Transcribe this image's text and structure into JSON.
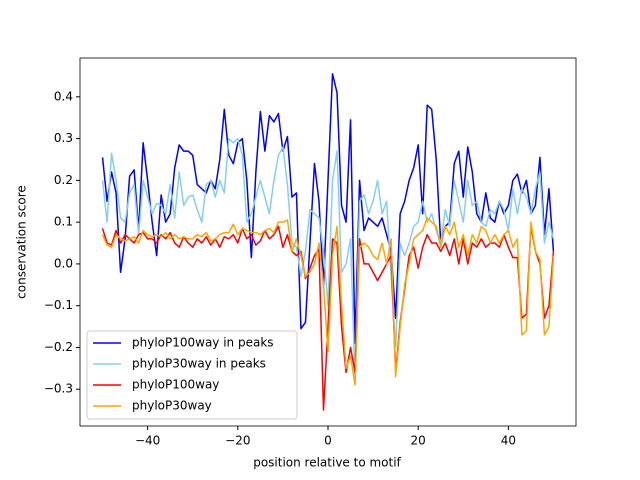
{
  "chart_data": {
    "type": "line",
    "xlabel": "position relative to motif",
    "ylabel": "conservation score",
    "x": [
      -50,
      -49,
      -48,
      -47,
      -46,
      -45,
      -44,
      -43,
      -42,
      -41,
      -40,
      -39,
      -38,
      -37,
      -36,
      -35,
      -34,
      -33,
      -32,
      -31,
      -30,
      -29,
      -28,
      -27,
      -26,
      -25,
      -24,
      -23,
      -22,
      -21,
      -20,
      -19,
      -18,
      -17,
      -16,
      -15,
      -14,
      -13,
      -12,
      -11,
      -10,
      -9,
      -8,
      -7,
      -6,
      -5,
      -4,
      -3,
      -2,
      -1,
      0,
      1,
      2,
      3,
      4,
      5,
      6,
      7,
      8,
      9,
      10,
      11,
      12,
      13,
      14,
      15,
      16,
      17,
      18,
      19,
      20,
      21,
      22,
      23,
      24,
      25,
      26,
      27,
      28,
      29,
      30,
      31,
      32,
      33,
      34,
      35,
      36,
      37,
      38,
      39,
      40,
      41,
      42,
      43,
      44,
      45,
      46,
      47,
      48,
      49,
      50
    ],
    "series": [
      {
        "name": "phyloP100way in peaks",
        "color": "#0000ff",
        "values": [
          0.255,
          0.15,
          0.22,
          0.17,
          -0.02,
          0.06,
          0.21,
          0.225,
          0.08,
          0.29,
          0.2,
          0.1,
          0.02,
          0.165,
          0.1,
          0.12,
          0.23,
          0.285,
          0.27,
          0.27,
          0.26,
          0.19,
          0.18,
          0.17,
          0.2,
          0.18,
          0.25,
          0.37,
          0.26,
          0.24,
          0.29,
          0.3,
          0.2,
          0.015,
          0.22,
          0.365,
          0.27,
          0.355,
          0.34,
          0.36,
          0.27,
          0.305,
          0.16,
          0.17,
          -0.155,
          -0.14,
          0.05,
          0.24,
          0.15,
          -0.05,
          0.2,
          0.455,
          0.41,
          0.14,
          0.1,
          0.345,
          -0.19,
          0.2,
          0.08,
          0.11,
          0.1,
          0.09,
          0.11,
          0.07,
          0.03,
          -0.13,
          0.12,
          0.15,
          0.2,
          0.23,
          0.285,
          0.12,
          0.38,
          0.37,
          0.25,
          0.05,
          0.09,
          0.1,
          0.24,
          0.27,
          0.16,
          0.28,
          0.22,
          0.12,
          0.1,
          0.17,
          0.11,
          0.1,
          0.15,
          0.12,
          0.14,
          0.2,
          0.215,
          0.17,
          0.2,
          0.12,
          0.14,
          0.255,
          0.07,
          0.18,
          0.03
        ]
      },
      {
        "name": "phyloP30way in peaks",
        "color": "#87ceeb",
        "values": [
          0.2,
          0.1,
          0.265,
          0.2,
          0.11,
          0.1,
          0.17,
          0.19,
          0.07,
          0.2,
          0.16,
          0.12,
          0.145,
          0.14,
          0.12,
          0.19,
          0.11,
          0.22,
          0.14,
          0.16,
          0.165,
          0.13,
          0.1,
          0.19,
          0.2,
          0.16,
          0.2,
          0.17,
          0.3,
          0.29,
          0.3,
          0.26,
          0.1,
          0.12,
          0.16,
          0.2,
          0.16,
          0.12,
          0.2,
          0.26,
          0.28,
          0.19,
          0.05,
          0.04,
          -0.03,
          0.03,
          0.13,
          0.12,
          0.11,
          0.03,
          -0.1,
          0.2,
          0.27,
          -0.02,
          0.0,
          0.06,
          -0.28,
          0.15,
          0.165,
          0.12,
          0.15,
          0.2,
          0.12,
          0.15,
          -0.03,
          -0.2,
          0.05,
          0.02,
          0.05,
          0.09,
          0.1,
          0.15,
          0.1,
          0.12,
          0.08,
          0.05,
          0.13,
          0.09,
          0.2,
          0.15,
          0.1,
          0.2,
          0.14,
          0.15,
          0.1,
          0.09,
          0.13,
          0.12,
          0.15,
          0.13,
          0.08,
          0.18,
          0.12,
          0.18,
          0.16,
          0.12,
          0.18,
          0.22,
          0.05,
          0.1,
          0.06
        ]
      },
      {
        "name": "phyloP100way",
        "color": "#ff0000",
        "values": [
          0.085,
          0.05,
          0.045,
          0.08,
          0.05,
          0.07,
          0.06,
          0.05,
          0.07,
          0.075,
          0.06,
          0.06,
          0.05,
          0.07,
          0.06,
          0.075,
          0.05,
          0.04,
          0.065,
          0.05,
          0.04,
          0.06,
          0.05,
          0.065,
          0.045,
          0.06,
          0.04,
          0.065,
          0.06,
          0.07,
          0.05,
          0.085,
          0.06,
          0.07,
          0.045,
          0.055,
          0.08,
          0.06,
          0.07,
          0.09,
          0.04,
          0.07,
          0.03,
          0.02,
          0.03,
          -0.035,
          -0.01,
          0.02,
          0.035,
          -0.35,
          -0.15,
          0.06,
          0.05,
          -0.15,
          -0.26,
          -0.2,
          -0.26,
          0.06,
          0.0,
          0.0,
          -0.02,
          -0.04,
          -0.02,
          0.0,
          0.02,
          -0.26,
          -0.14,
          -0.06,
          0.02,
          0.04,
          -0.01,
          0.04,
          0.07,
          0.05,
          0.05,
          0.03,
          0.05,
          0.02,
          0.06,
          0.0,
          0.06,
          0.0,
          0.05,
          0.04,
          0.06,
          0.04,
          0.05,
          0.05,
          0.04,
          0.07,
          0.04,
          0.015,
          0.015,
          -0.13,
          -0.12,
          0.09,
          0.03,
          0.0,
          -0.13,
          -0.1,
          0.03
        ]
      },
      {
        "name": "phyloP30way",
        "color": "#ffa500",
        "values": [
          0.07,
          0.045,
          0.04,
          0.07,
          0.06,
          0.055,
          0.06,
          0.065,
          0.05,
          0.08,
          0.07,
          0.065,
          0.07,
          0.065,
          0.075,
          0.06,
          0.07,
          0.06,
          0.065,
          0.06,
          0.06,
          0.07,
          0.065,
          0.075,
          0.055,
          0.06,
          0.07,
          0.075,
          0.075,
          0.095,
          0.07,
          0.085,
          0.08,
          0.075,
          0.075,
          0.07,
          0.08,
          0.085,
          0.075,
          0.1,
          0.1,
          0.105,
          0.03,
          0.06,
          0.02,
          -0.03,
          -0.02,
          0.0,
          0.05,
          -0.05,
          -0.21,
          0.02,
          0.09,
          -0.1,
          -0.25,
          -0.22,
          -0.29,
          0.04,
          0.05,
          0.04,
          0.02,
          0.01,
          0.05,
          0.0,
          0.06,
          -0.27,
          -0.15,
          -0.05,
          0.0,
          0.06,
          0.07,
          0.08,
          0.11,
          0.1,
          0.09,
          0.04,
          0.09,
          0.07,
          0.1,
          0.04,
          0.07,
          0.02,
          0.07,
          0.05,
          0.09,
          0.08,
          0.05,
          0.07,
          0.05,
          0.07,
          0.08,
          0.04,
          0.06,
          -0.17,
          -0.16,
          0.1,
          0.03,
          0.01,
          -0.17,
          -0.15,
          0.02
        ]
      }
    ],
    "xlim": [
      -55,
      55
    ],
    "xticks": [
      {
        "value": -40,
        "label": "−40"
      },
      {
        "value": -20,
        "label": "−20"
      },
      0,
      20,
      40
    ],
    "ylim": [
      -0.388,
      0.493
    ],
    "yticks": [
      {
        "value": -0.3,
        "label": "−0.3"
      },
      {
        "value": -0.2,
        "label": "−0.2"
      },
      {
        "value": -0.1,
        "label": "−0.1"
      },
      {
        "value": 0,
        "label": "0.0"
      },
      0.1,
      0.2,
      0.3,
      0.4
    ],
    "legend": "lower left"
  }
}
